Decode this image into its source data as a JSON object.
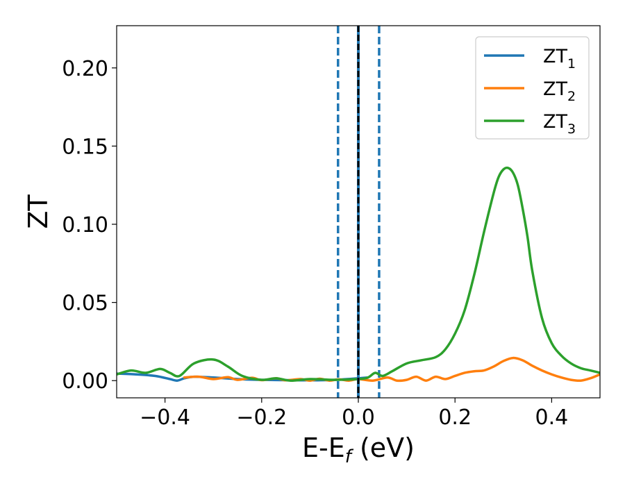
{
  "chart_data": {
    "type": "line",
    "xlabel": {
      "main": "E-E",
      "sub": "f",
      "unit": " (eV)"
    },
    "ylabel": "ZT",
    "xlim": [
      -0.5,
      0.5
    ],
    "ylim": [
      -0.011,
      0.227
    ],
    "xticks": [
      {
        "value": -0.4,
        "label": "−0.4"
      },
      {
        "value": -0.2,
        "label": "−0.2"
      },
      {
        "value": 0.0,
        "label": "0.0"
      },
      {
        "value": 0.2,
        "label": "0.2"
      },
      {
        "value": 0.4,
        "label": "0.4"
      }
    ],
    "yticks": [
      {
        "value": 0.0,
        "label": "0.00"
      },
      {
        "value": 0.05,
        "label": "0.05"
      },
      {
        "value": 0.1,
        "label": "0.10"
      },
      {
        "value": 0.15,
        "label": "0.15"
      },
      {
        "value": 0.2,
        "label": "0.20"
      }
    ],
    "grid": false,
    "legend_position": "top-right",
    "vlines": [
      {
        "x": -0.042,
        "style": "dashed",
        "color": "#1f77b4"
      },
      {
        "x": 0.0,
        "style": "dashed",
        "color": "#000000"
      },
      {
        "x": 0.043,
        "style": "dashed",
        "color": "#1f77b4"
      }
    ],
    "series": [
      {
        "name": "ZT",
        "sub": "1",
        "color": "#1f77b4",
        "x": [
          -0.5,
          -0.46,
          -0.42,
          -0.39,
          -0.375,
          -0.36,
          -0.34,
          -0.3,
          -0.25,
          -0.2,
          -0.15,
          -0.1,
          -0.05,
          0.0,
          0.02
        ],
        "y": [
          0.0045,
          0.004,
          0.003,
          0.001,
          0.0,
          0.0015,
          0.0025,
          0.002,
          0.001,
          0.0005,
          0.0003,
          0.0002,
          0.0005,
          0.0015,
          0.002
        ]
      },
      {
        "name": "ZT",
        "sub": "2",
        "color": "#ff7f0e",
        "x": [
          -0.36,
          -0.33,
          -0.3,
          -0.27,
          -0.25,
          -0.22,
          -0.2,
          -0.17,
          -0.15,
          -0.12,
          -0.1,
          -0.08,
          -0.06,
          -0.04,
          -0.02,
          0.0,
          0.03,
          0.06,
          0.08,
          0.1,
          0.12,
          0.14,
          0.16,
          0.18,
          0.2,
          0.22,
          0.24,
          0.26,
          0.28,
          0.3,
          0.32,
          0.34,
          0.36,
          0.38,
          0.4,
          0.42,
          0.44,
          0.46,
          0.48,
          0.5
        ],
        "y": [
          0.002,
          0.0025,
          0.001,
          0.0022,
          0.0005,
          0.0018,
          0.0003,
          0.0015,
          0.0002,
          0.001,
          0.0,
          0.0012,
          0.0,
          0.0008,
          0.0,
          0.001,
          0.0,
          0.002,
          0.0,
          0.0005,
          0.0025,
          0.0,
          0.0025,
          0.001,
          0.003,
          0.005,
          0.006,
          0.0065,
          0.009,
          0.0125,
          0.0145,
          0.013,
          0.0095,
          0.0065,
          0.004,
          0.002,
          0.0005,
          0.0,
          0.0015,
          0.004
        ]
      },
      {
        "name": "ZT",
        "sub": "3",
        "color": "#2ca02c",
        "x": [
          -0.5,
          -0.47,
          -0.44,
          -0.41,
          -0.39,
          -0.37,
          -0.34,
          -0.3,
          -0.27,
          -0.24,
          -0.2,
          -0.17,
          -0.14,
          -0.1,
          -0.05,
          0.0,
          0.02,
          0.035,
          0.05,
          0.07,
          0.1,
          0.13,
          0.16,
          0.18,
          0.2,
          0.22,
          0.24,
          0.26,
          0.28,
          0.29,
          0.3,
          0.31,
          0.32,
          0.33,
          0.34,
          0.35,
          0.36,
          0.38,
          0.4,
          0.42,
          0.44,
          0.46,
          0.48,
          0.5
        ],
        "y": [
          0.004,
          0.0065,
          0.005,
          0.0075,
          0.005,
          0.003,
          0.011,
          0.0135,
          0.009,
          0.003,
          0.0005,
          0.0015,
          0.0,
          0.001,
          0.0005,
          0.001,
          0.002,
          0.005,
          0.003,
          0.006,
          0.011,
          0.013,
          0.015,
          0.02,
          0.03,
          0.045,
          0.068,
          0.095,
          0.12,
          0.13,
          0.135,
          0.136,
          0.133,
          0.125,
          0.11,
          0.092,
          0.07,
          0.04,
          0.024,
          0.016,
          0.011,
          0.008,
          0.0065,
          0.005
        ]
      }
    ]
  }
}
